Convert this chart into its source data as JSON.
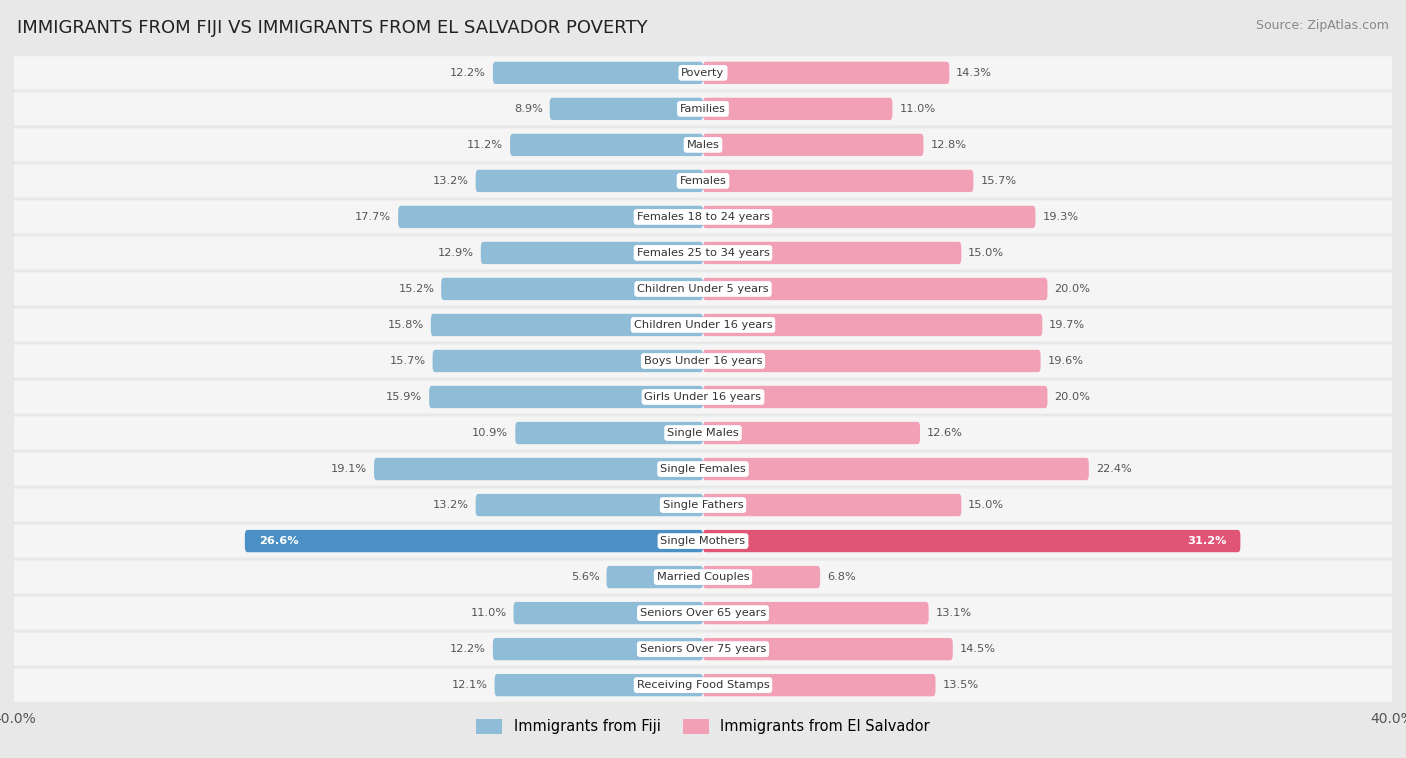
{
  "title": "IMMIGRANTS FROM FIJI VS IMMIGRANTS FROM EL SALVADOR POVERTY",
  "source": "Source: ZipAtlas.com",
  "categories": [
    "Poverty",
    "Families",
    "Males",
    "Females",
    "Females 18 to 24 years",
    "Females 25 to 34 years",
    "Children Under 5 years",
    "Children Under 16 years",
    "Boys Under 16 years",
    "Girls Under 16 years",
    "Single Males",
    "Single Females",
    "Single Fathers",
    "Single Mothers",
    "Married Couples",
    "Seniors Over 65 years",
    "Seniors Over 75 years",
    "Receiving Food Stamps"
  ],
  "fiji_values": [
    12.2,
    8.9,
    11.2,
    13.2,
    17.7,
    12.9,
    15.2,
    15.8,
    15.7,
    15.9,
    10.9,
    19.1,
    13.2,
    26.6,
    5.6,
    11.0,
    12.2,
    12.1
  ],
  "elsalvador_values": [
    14.3,
    11.0,
    12.8,
    15.7,
    19.3,
    15.0,
    20.0,
    19.7,
    19.6,
    20.0,
    12.6,
    22.4,
    15.0,
    31.2,
    6.8,
    13.1,
    14.5,
    13.5
  ],
  "fiji_color": "#8fbdd8",
  "elsalvador_color": "#f2a0b5",
  "single_mothers_fiji_color": "#4a90c4",
  "single_mothers_elsalvador_color": "#e05575",
  "axis_max": 40.0,
  "background_color": "#e8e8e8",
  "bar_bg_color": "#f5f5f5",
  "row_border_color": "#dddddd",
  "title_color": "#222222",
  "value_color": "#555555",
  "legend_fiji": "Immigrants from Fiji",
  "legend_elsalvador": "Immigrants from El Salvador"
}
